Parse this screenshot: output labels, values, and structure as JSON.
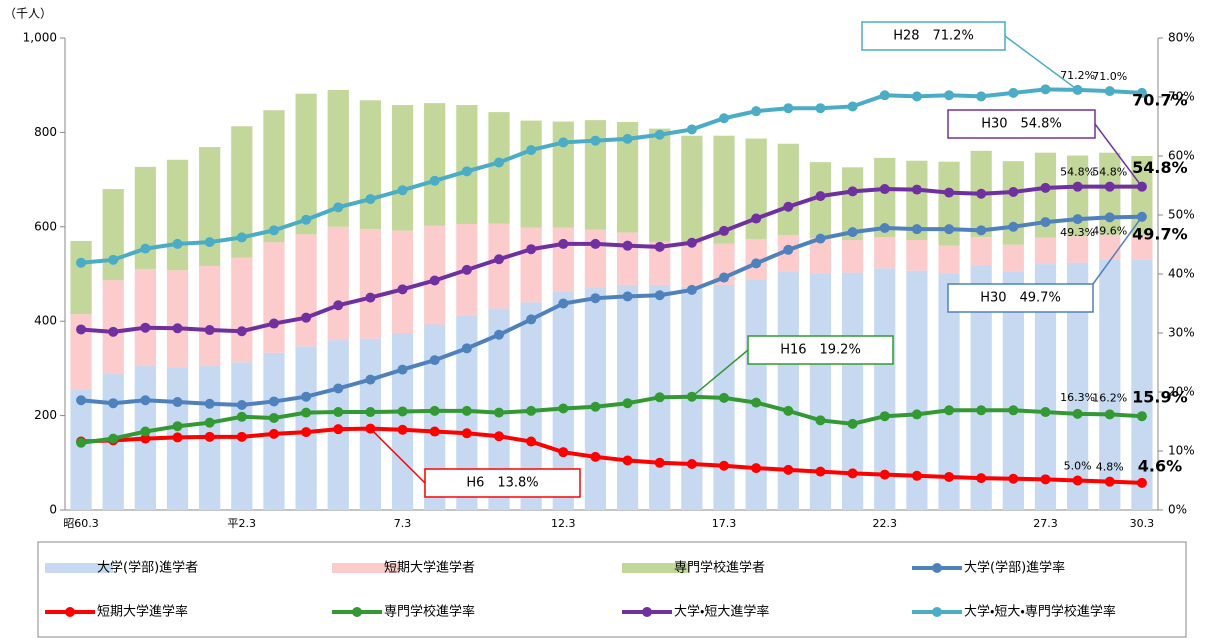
{
  "chart_data": {
    "type": "bar",
    "y_label": "（千人）",
    "categories": [
      "昭60.3",
      null,
      null,
      null,
      null,
      "平2.3",
      null,
      null,
      null,
      null,
      "7.3",
      null,
      null,
      null,
      null,
      "12.3",
      null,
      null,
      null,
      null,
      "17.3",
      null,
      null,
      null,
      null,
      "22.3",
      null,
      null,
      null,
      null,
      "27.3",
      null,
      null,
      "30.3"
    ],
    "ylim": [
      0,
      1000
    ],
    "yticks": [
      0,
      200,
      400,
      600,
      800,
      {
        "value": 1000,
        "label": "1,000"
      }
    ],
    "y2lim": [
      0,
      80
    ],
    "y2ticks": [
      {
        "value": 0,
        "label": "0%"
      },
      {
        "value": 10,
        "label": "10%"
      },
      {
        "value": 20,
        "label": "20%"
      },
      {
        "value": 30,
        "label": "30%"
      },
      {
        "value": 40,
        "label": "40%"
      },
      {
        "value": 50,
        "label": "50%"
      },
      {
        "value": 60,
        "label": "60%"
      },
      {
        "value": 70,
        "label": "70%"
      },
      {
        "value": 80,
        "label": "80%"
      }
    ],
    "stacked": true,
    "series": [
      {
        "name": "大学(学部)進学者",
        "type": "bar",
        "color": "#c6d9f1",
        "values": [
          255,
          290,
          305,
          302,
          305,
          313,
          333,
          347,
          360,
          363,
          375,
          393,
          412,
          427,
          440,
          463,
          472,
          477,
          477,
          473,
          477,
          489,
          505,
          500,
          503,
          512,
          507,
          501,
          517,
          505,
          521,
          524,
          531,
          530
        ]
      },
      {
        "name": "短期大学進学者",
        "type": "bar",
        "color": "#fccbcb",
        "values": [
          160,
          197,
          205,
          206,
          212,
          222,
          234,
          237,
          240,
          232,
          217,
          209,
          194,
          180,
          158,
          135,
          122,
          111,
          91,
          91,
          87,
          85,
          77,
          76,
          69,
          66,
          65,
          59,
          61,
          57,
          56,
          56,
          52,
          53
        ]
      },
      {
        "name": "専門学校進学者",
        "type": "bar",
        "color": "#c4d79b",
        "values": [
          155,
          193,
          217,
          234,
          252,
          278,
          280,
          298,
          290,
          273,
          266,
          260,
          252,
          236,
          227,
          225,
          232,
          234,
          240,
          229,
          229,
          213,
          194,
          161,
          154,
          168,
          168,
          178,
          183,
          177,
          180,
          171,
          174,
          167
        ]
      },
      {
        "name": "大学(学部)進学率",
        "type": "line",
        "axis": "y2",
        "color": "#4f81bd",
        "values": [
          18.6,
          18.1,
          18.6,
          18.3,
          18.0,
          17.8,
          18.4,
          19.2,
          20.6,
          22.1,
          23.8,
          25.4,
          27.4,
          29.7,
          32.3,
          35.0,
          35.9,
          36.2,
          36.4,
          37.3,
          39.4,
          41.8,
          44.1,
          46.0,
          47.1,
          47.8,
          47.6,
          47.6,
          47.4,
          48.0,
          48.8,
          49.3,
          49.6,
          49.7
        ],
        "value_labels": [
          null,
          null,
          null,
          null,
          null,
          null,
          null,
          null,
          null,
          null,
          null,
          null,
          null,
          null,
          null,
          null,
          null,
          null,
          null,
          null,
          null,
          null,
          null,
          null,
          null,
          null,
          null,
          null,
          null,
          null,
          null,
          "49.3%",
          "49.6%",
          "49.7%"
        ]
      },
      {
        "name": "短期大学進学率",
        "type": "line",
        "axis": "y2",
        "color": "#ff0000",
        "values": [
          11.6,
          11.8,
          12.1,
          12.3,
          12.4,
          12.4,
          12.9,
          13.2,
          13.7,
          13.8,
          13.6,
          13.3,
          13.0,
          12.5,
          11.6,
          9.8,
          9.0,
          8.4,
          8.0,
          7.8,
          7.5,
          7.1,
          6.8,
          6.5,
          6.2,
          6.0,
          5.8,
          5.6,
          5.4,
          5.3,
          5.2,
          5.0,
          4.8,
          4.6
        ],
        "value_labels": [
          null,
          null,
          null,
          null,
          null,
          null,
          null,
          null,
          null,
          null,
          null,
          null,
          null,
          null,
          null,
          null,
          null,
          null,
          null,
          null,
          null,
          null,
          null,
          null,
          null,
          null,
          null,
          null,
          null,
          null,
          null,
          "5.0%",
          "4.8%",
          "4.6%"
        ]
      },
      {
        "name": "専門学校進学率",
        "type": "line",
        "axis": "y2",
        "color": "#339933",
        "values": [
          11.4,
          12.1,
          13.3,
          14.2,
          14.8,
          15.8,
          15.6,
          16.5,
          16.6,
          16.6,
          16.7,
          16.8,
          16.8,
          16.5,
          16.8,
          17.2,
          17.5,
          18.1,
          19.1,
          19.2,
          19.0,
          18.2,
          16.8,
          15.2,
          14.6,
          15.9,
          16.2,
          16.9,
          16.9,
          16.9,
          16.6,
          16.3,
          16.2,
          15.9
        ],
        "value_labels": [
          null,
          null,
          null,
          null,
          null,
          null,
          null,
          null,
          null,
          null,
          null,
          null,
          null,
          null,
          null,
          null,
          null,
          null,
          null,
          null,
          null,
          null,
          null,
          null,
          null,
          null,
          null,
          null,
          null,
          null,
          null,
          "16.3%",
          "16.2%",
          "15.9%"
        ]
      },
      {
        "name": "大学・短大進学率",
        "type": "line",
        "axis": "y2",
        "color": "#7030a0",
        "values": [
          30.6,
          30.2,
          30.9,
          30.8,
          30.5,
          30.3,
          31.6,
          32.6,
          34.7,
          36.0,
          37.4,
          38.9,
          40.7,
          42.5,
          44.2,
          45.1,
          45.1,
          44.8,
          44.6,
          45.3,
          47.3,
          49.4,
          51.4,
          53.2,
          54.0,
          54.4,
          54.3,
          53.8,
          53.6,
          53.9,
          54.6,
          54.8,
          54.8,
          54.8
        ],
        "value_labels": [
          null,
          null,
          null,
          null,
          null,
          null,
          null,
          null,
          null,
          null,
          null,
          null,
          null,
          null,
          null,
          null,
          null,
          null,
          null,
          null,
          null,
          null,
          null,
          null,
          null,
          null,
          null,
          null,
          null,
          null,
          null,
          "54.8%",
          "54.8%",
          "54.8%"
        ]
      },
      {
        "name": "大学・短大・専門学校進学率",
        "type": "line",
        "axis": "y2",
        "color": "#4bacc6",
        "values": [
          41.9,
          42.4,
          44.3,
          45.1,
          45.4,
          46.2,
          47.4,
          49.2,
          51.3,
          52.7,
          54.2,
          55.8,
          57.4,
          58.9,
          61.0,
          62.3,
          62.6,
          62.9,
          63.6,
          64.5,
          66.4,
          67.6,
          68.1,
          68.1,
          68.4,
          70.3,
          70.1,
          70.3,
          70.1,
          70.7,
          71.3,
          71.2,
          71.0,
          70.7
        ],
        "value_labels": [
          null,
          null,
          null,
          null,
          null,
          null,
          null,
          null,
          null,
          null,
          null,
          null,
          null,
          null,
          null,
          null,
          null,
          null,
          null,
          null,
          null,
          null,
          null,
          null,
          null,
          null,
          null,
          null,
          null,
          null,
          null,
          "71.2%",
          "71.0%",
          "70.7%"
        ]
      }
    ],
    "annotations": [
      "H28　71.2%",
      "H30　54.8%",
      "H30　49.7%",
      "H16　19.2%",
      "H6　13.8%"
    ]
  }
}
